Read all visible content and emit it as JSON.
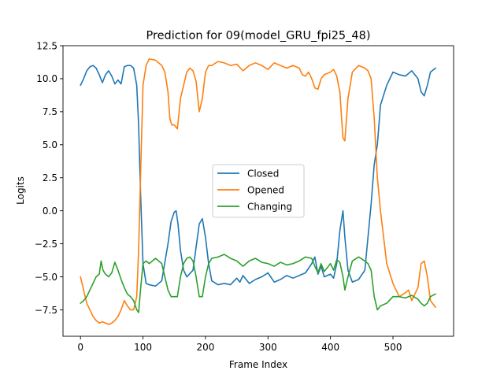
{
  "chart_data": {
    "type": "line",
    "title": "Prediction for 09(model_GRU_fpi25_48)",
    "xlabel": "Frame Index",
    "ylabel": "Logits",
    "xlim": [
      -28,
      597
    ],
    "ylim": [
      -9.5,
      12.5
    ],
    "xticks": [
      0,
      100,
      200,
      300,
      400,
      500
    ],
    "yticks": [
      -7.5,
      -5.0,
      -2.5,
      0.0,
      2.5,
      5.0,
      7.5,
      10.0,
      12.5
    ],
    "ytick_labels": [
      "−7.5",
      "−5.0",
      "−2.5",
      "0.0",
      "2.5",
      "5.0",
      "7.5",
      "10.0",
      "12.5"
    ],
    "grid": false,
    "legend_position": "center",
    "series": [
      {
        "name": "Closed",
        "color": "#1f77b4",
        "x": [
          0,
          5,
          10,
          15,
          20,
          25,
          30,
          35,
          40,
          45,
          50,
          55,
          60,
          65,
          70,
          75,
          80,
          85,
          90,
          93,
          96,
          100,
          105,
          110,
          120,
          130,
          140,
          145,
          150,
          153,
          156,
          160,
          165,
          170,
          180,
          190,
          195,
          200,
          205,
          210,
          220,
          230,
          240,
          250,
          255,
          260,
          265,
          270,
          280,
          290,
          300,
          310,
          320,
          330,
          340,
          350,
          360,
          370,
          375,
          380,
          385,
          390,
          400,
          405,
          410,
          415,
          420,
          423,
          428,
          435,
          445,
          455,
          460,
          465,
          470,
          475,
          480,
          490,
          500,
          510,
          520,
          530,
          540,
          545,
          550,
          555,
          560,
          568
        ],
        "y": [
          9.5,
          10.0,
          10.6,
          10.9,
          11.0,
          10.8,
          10.3,
          9.7,
          10.3,
          10.6,
          10.2,
          9.6,
          9.9,
          9.6,
          10.9,
          11.0,
          11.0,
          10.8,
          9.5,
          6.5,
          1.5,
          -4.0,
          -5.5,
          -5.6,
          -5.7,
          -5.3,
          -2.5,
          -0.8,
          -0.1,
          0.0,
          -1.0,
          -3.0,
          -4.5,
          -5.0,
          -4.5,
          -1.0,
          -0.6,
          -2.0,
          -4.0,
          -5.3,
          -5.6,
          -5.5,
          -5.6,
          -5.1,
          -5.4,
          -4.9,
          -5.2,
          -5.5,
          -5.2,
          -5.0,
          -4.7,
          -5.4,
          -5.2,
          -4.9,
          -5.1,
          -4.9,
          -4.7,
          -4.0,
          -3.5,
          -4.8,
          -4.2,
          -5.0,
          -4.8,
          -5.1,
          -4.0,
          -1.5,
          0.0,
          -2.0,
          -4.5,
          -5.4,
          -5.2,
          -4.5,
          -2.0,
          0.5,
          3.5,
          5.0,
          8.0,
          9.5,
          10.5,
          10.3,
          10.2,
          10.6,
          10.0,
          9.0,
          8.7,
          9.5,
          10.5,
          10.8
        ]
      },
      {
        "name": "Opened",
        "color": "#ff7f0e",
        "x": [
          0,
          5,
          10,
          15,
          20,
          25,
          30,
          35,
          40,
          45,
          50,
          55,
          60,
          65,
          70,
          75,
          80,
          85,
          90,
          93,
          96,
          100,
          105,
          110,
          120,
          130,
          135,
          140,
          143,
          146,
          150,
          155,
          160,
          165,
          170,
          175,
          180,
          185,
          190,
          195,
          200,
          205,
          210,
          220,
          230,
          240,
          250,
          260,
          270,
          280,
          290,
          300,
          310,
          320,
          330,
          340,
          350,
          355,
          360,
          365,
          370,
          375,
          380,
          385,
          390,
          400,
          405,
          410,
          415,
          420,
          423,
          428,
          435,
          445,
          455,
          460,
          465,
          470,
          475,
          480,
          490,
          500,
          510,
          520,
          525,
          530,
          540,
          545,
          550,
          555,
          560,
          568
        ],
        "y": [
          -5.0,
          -6.0,
          -7.0,
          -7.5,
          -8.0,
          -8.3,
          -8.5,
          -8.4,
          -8.5,
          -8.6,
          -8.5,
          -8.3,
          -8.0,
          -7.5,
          -6.8,
          -7.2,
          -7.5,
          -7.5,
          -6.5,
          -3.0,
          2.5,
          9.5,
          11.0,
          11.5,
          11.4,
          11.0,
          10.5,
          9.0,
          7.0,
          6.5,
          6.5,
          6.2,
          8.5,
          9.5,
          10.5,
          10.8,
          10.6,
          9.8,
          7.5,
          8.5,
          10.5,
          11.0,
          11.0,
          11.3,
          11.2,
          11.0,
          11.1,
          10.6,
          11.0,
          11.2,
          11.0,
          10.7,
          11.2,
          11.0,
          10.8,
          11.0,
          10.8,
          10.3,
          10.2,
          10.5,
          10.0,
          9.3,
          9.2,
          10.0,
          10.3,
          10.5,
          10.7,
          10.2,
          9.0,
          5.5,
          5.3,
          8.5,
          10.5,
          11.0,
          10.8,
          10.6,
          10.0,
          7.0,
          2.5,
          0.0,
          -4.0,
          -5.5,
          -6.5,
          -6.2,
          -6.0,
          -6.8,
          -5.8,
          -4.0,
          -3.8,
          -5.0,
          -6.8,
          -7.3
        ]
      },
      {
        "name": "Changing",
        "color": "#2ca02c",
        "x": [
          0,
          5,
          10,
          15,
          20,
          25,
          30,
          33,
          36,
          40,
          45,
          50,
          55,
          60,
          65,
          70,
          75,
          80,
          85,
          90,
          93,
          96,
          100,
          105,
          110,
          120,
          130,
          135,
          140,
          145,
          150,
          155,
          160,
          165,
          170,
          175,
          180,
          185,
          190,
          195,
          200,
          205,
          210,
          220,
          230,
          240,
          250,
          260,
          270,
          280,
          290,
          300,
          310,
          320,
          330,
          340,
          350,
          360,
          370,
          375,
          380,
          385,
          390,
          400,
          405,
          410,
          415,
          420,
          423,
          428,
          435,
          445,
          455,
          460,
          465,
          470,
          475,
          480,
          490,
          500,
          510,
          520,
          530,
          540,
          545,
          550,
          555,
          560,
          568
        ],
        "y": [
          -7.0,
          -6.8,
          -6.5,
          -6.0,
          -5.5,
          -5.0,
          -4.8,
          -3.8,
          -4.5,
          -4.8,
          -5.0,
          -4.7,
          -3.9,
          -4.5,
          -5.2,
          -5.8,
          -6.3,
          -6.5,
          -6.8,
          -7.5,
          -7.7,
          -6.0,
          -4.0,
          -3.8,
          -4.0,
          -3.6,
          -4.0,
          -5.0,
          -6.0,
          -6.5,
          -6.5,
          -6.5,
          -5.0,
          -4.0,
          -3.6,
          -3.5,
          -3.8,
          -5.0,
          -6.5,
          -6.5,
          -5.0,
          -4.0,
          -3.6,
          -3.5,
          -3.3,
          -3.6,
          -3.8,
          -4.2,
          -3.8,
          -3.6,
          -3.9,
          -4.0,
          -4.2,
          -3.9,
          -4.1,
          -4.0,
          -3.8,
          -3.5,
          -3.6,
          -4.2,
          -4.7,
          -4.0,
          -4.6,
          -4.0,
          -4.5,
          -3.7,
          -3.9,
          -5.0,
          -6.0,
          -5.0,
          -3.8,
          -3.5,
          -3.8,
          -4.0,
          -4.5,
          -6.5,
          -7.5,
          -7.2,
          -7.0,
          -6.5,
          -6.5,
          -6.6,
          -6.4,
          -6.7,
          -7.0,
          -7.2,
          -7.0,
          -6.5,
          -6.3
        ]
      }
    ]
  }
}
